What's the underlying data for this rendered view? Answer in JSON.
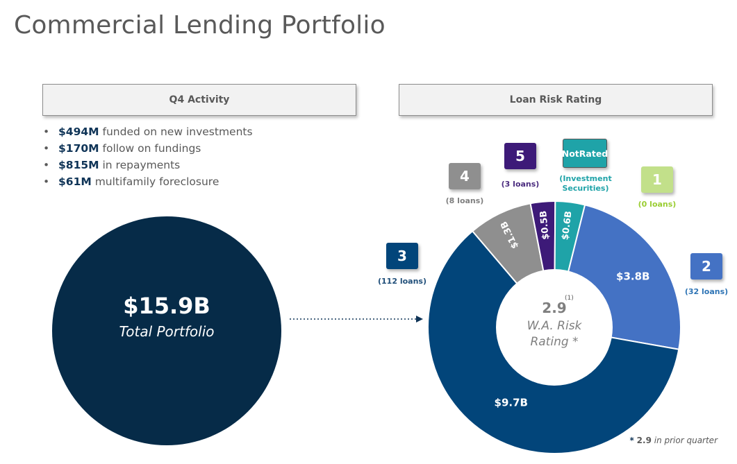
{
  "title": "Commercial Lending Portfolio",
  "activity": {
    "header": "Q4 Activity",
    "items": [
      {
        "amount": "$494M",
        "text": " funded on new investments"
      },
      {
        "amount": "$170M",
        "text": " follow on fundings"
      },
      {
        "amount": "$815M",
        "text": " in repayments"
      },
      {
        "amount": "$61M",
        "text": " multifamily foreclosure"
      }
    ]
  },
  "total": {
    "value": "$15.9B",
    "label": "Total Portfolio"
  },
  "risk_header": "Loan Risk Rating",
  "center": {
    "value": "2.9",
    "note": "(1)",
    "label_line1": "W.A. Risk",
    "label_line2": "Rating *"
  },
  "footnote": {
    "star": "*",
    "value": "2.9",
    "text": " in prior quarter"
  },
  "ratings": [
    {
      "rating": "1",
      "count": "(0 loans)"
    },
    {
      "rating": "2",
      "count": "(32 loans)"
    },
    {
      "rating": "3",
      "count": "(112 loans)"
    },
    {
      "rating": "4",
      "count": "(8 loans)"
    },
    {
      "rating": "5",
      "count": "(3 loans)"
    },
    {
      "rating_line1": "Not",
      "rating_line2": "Rated",
      "count_line1": "(Investment",
      "count_line2": "Securities)"
    }
  ],
  "colors": {
    "rating_1": "#c2e08a",
    "rating_2": "#4472c4",
    "rating_3": "#02457a",
    "rating_4": "#8f8f8f",
    "rating_5": "#3d1a78",
    "not_rated": "#1fa3a8",
    "total": "#062b48",
    "count_1": "#9acd32",
    "count_2": "#2e74b5",
    "count_3": "#1f4e79",
    "count_4": "#7f7f7f",
    "count_5": "#4b2c7f",
    "count_nr": "#1fa3a8"
  },
  "chart_data": {
    "type": "pie",
    "categories": [
      "2",
      "3",
      "4",
      "5",
      "Not Rated"
    ],
    "values": [
      3.8,
      9.7,
      1.3,
      0.5,
      0.6
    ],
    "data_labels": [
      "$3.8B",
      "$9.7B",
      "$1.3B",
      "$0.5B",
      "$0.6B"
    ],
    "colors": [
      "#4472c4",
      "#02457a",
      "#8f8f8f",
      "#3d1a78",
      "#1fa3a8"
    ]
  }
}
